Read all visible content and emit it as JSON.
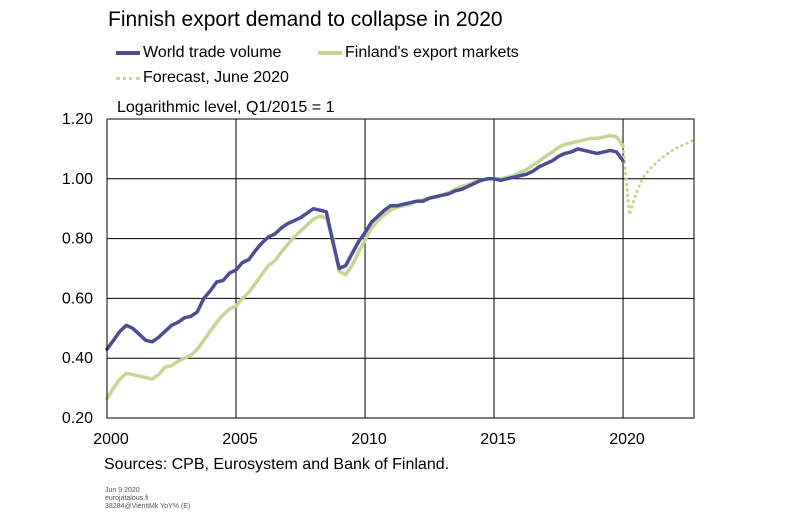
{
  "title": "Finnish export demand to collapse in 2020",
  "subtitle": "Logarithmic level, Q1/2015 = 1",
  "sources": "Sources: CPB, Eurosystem and Bank of Finland.",
  "footnote": [
    "Jun 9 2020",
    "eurojatalous.fi",
    "38284@VientiMk YoY% (E)"
  ],
  "colors": {
    "world": "#4b4d97",
    "finland": "#c5d592",
    "grid": "#000000"
  },
  "chart_data": {
    "type": "line",
    "title": "Finnish export demand to collapse in 2020",
    "ylabel": "Logarithmic level, Q1/2015 = 1",
    "xlim": [
      2000,
      2022.75
    ],
    "ylim": [
      0.2,
      1.2
    ],
    "y_scale": "linear",
    "grid": true,
    "legend_position": "top-left",
    "xticks": [
      2000,
      2005,
      2010,
      2015,
      2020
    ],
    "xtick_labels": [
      "2000",
      "2005",
      "2010",
      "2015",
      "2020"
    ],
    "yticks": [
      0.2,
      0.4,
      0.6,
      0.8,
      1.0,
      1.2
    ],
    "ytick_labels": [
      "0.20",
      "0.40",
      "0.60",
      "0.80",
      "1.00",
      "1.20"
    ],
    "series": [
      {
        "name": "World trade volume",
        "style": "solid",
        "color": "#4b4d97",
        "x": [
          2000.0,
          2000.25,
          2000.5,
          2000.75,
          2001.0,
          2001.25,
          2001.5,
          2001.75,
          2002.0,
          2002.25,
          2002.5,
          2002.75,
          2003.0,
          2003.25,
          2003.5,
          2003.75,
          2004.0,
          2004.25,
          2004.5,
          2004.75,
          2005.0,
          2005.25,
          2005.5,
          2005.75,
          2006.0,
          2006.25,
          2006.5,
          2006.75,
          2007.0,
          2007.25,
          2007.5,
          2007.75,
          2008.0,
          2008.25,
          2008.5,
          2008.75,
          2009.0,
          2009.25,
          2009.5,
          2009.75,
          2010.0,
          2010.25,
          2010.5,
          2010.75,
          2011.0,
          2011.25,
          2011.5,
          2011.75,
          2012.0,
          2012.25,
          2012.5,
          2012.75,
          2013.0,
          2013.25,
          2013.5,
          2013.75,
          2014.0,
          2014.25,
          2014.5,
          2014.75,
          2015.0,
          2015.25,
          2015.5,
          2015.75,
          2016.0,
          2016.25,
          2016.5,
          2016.75,
          2017.0,
          2017.25,
          2017.5,
          2017.75,
          2018.0,
          2018.25,
          2018.5,
          2018.75,
          2019.0,
          2019.25,
          2019.5,
          2019.75,
          2020.0
        ],
        "y": [
          0.43,
          0.46,
          0.49,
          0.51,
          0.5,
          0.48,
          0.46,
          0.455,
          0.47,
          0.49,
          0.51,
          0.52,
          0.535,
          0.54,
          0.555,
          0.6,
          0.625,
          0.655,
          0.66,
          0.685,
          0.695,
          0.72,
          0.73,
          0.76,
          0.785,
          0.805,
          0.815,
          0.835,
          0.85,
          0.86,
          0.87,
          0.885,
          0.9,
          0.895,
          0.89,
          0.79,
          0.7,
          0.71,
          0.75,
          0.79,
          0.82,
          0.855,
          0.875,
          0.895,
          0.91,
          0.91,
          0.915,
          0.92,
          0.925,
          0.925,
          0.935,
          0.94,
          0.945,
          0.95,
          0.96,
          0.965,
          0.975,
          0.985,
          0.995,
          1.0,
          1.0,
          0.995,
          1.0,
          1.005,
          1.01,
          1.015,
          1.025,
          1.04,
          1.05,
          1.06,
          1.075,
          1.085,
          1.09,
          1.1,
          1.095,
          1.09,
          1.085,
          1.09,
          1.095,
          1.09,
          1.06
        ]
      },
      {
        "name": "Finland's export markets",
        "style": "solid",
        "color": "#c5d592",
        "x": [
          2000.0,
          2000.25,
          2000.5,
          2000.75,
          2001.0,
          2001.25,
          2001.5,
          2001.75,
          2002.0,
          2002.25,
          2002.5,
          2002.75,
          2003.0,
          2003.25,
          2003.5,
          2003.75,
          2004.0,
          2004.25,
          2004.5,
          2004.75,
          2005.0,
          2005.25,
          2005.5,
          2005.75,
          2006.0,
          2006.25,
          2006.5,
          2006.75,
          2007.0,
          2007.25,
          2007.5,
          2007.75,
          2008.0,
          2008.25,
          2008.5,
          2008.75,
          2009.0,
          2009.25,
          2009.5,
          2009.75,
          2010.0,
          2010.25,
          2010.5,
          2010.75,
          2011.0,
          2011.25,
          2011.5,
          2011.75,
          2012.0,
          2012.25,
          2012.5,
          2012.75,
          2013.0,
          2013.25,
          2013.5,
          2013.75,
          2014.0,
          2014.25,
          2014.5,
          2014.75,
          2015.0,
          2015.25,
          2015.5,
          2015.75,
          2016.0,
          2016.25,
          2016.5,
          2016.75,
          2017.0,
          2017.25,
          2017.5,
          2017.75,
          2018.0,
          2018.25,
          2018.5,
          2018.75,
          2019.0,
          2019.25,
          2019.5,
          2019.75,
          2020.0
        ],
        "y": [
          0.265,
          0.3,
          0.33,
          0.35,
          0.345,
          0.34,
          0.335,
          0.33,
          0.345,
          0.37,
          0.375,
          0.39,
          0.4,
          0.41,
          0.43,
          0.46,
          0.49,
          0.52,
          0.545,
          0.565,
          0.575,
          0.6,
          0.62,
          0.65,
          0.68,
          0.71,
          0.725,
          0.755,
          0.78,
          0.805,
          0.825,
          0.845,
          0.865,
          0.875,
          0.87,
          0.8,
          0.69,
          0.68,
          0.71,
          0.755,
          0.795,
          0.835,
          0.86,
          0.88,
          0.895,
          0.905,
          0.91,
          0.915,
          0.925,
          0.93,
          0.935,
          0.94,
          0.945,
          0.955,
          0.965,
          0.975,
          0.98,
          0.99,
          0.995,
          1.0,
          1.0,
          1.0,
          1.005,
          1.01,
          1.02,
          1.03,
          1.045,
          1.06,
          1.075,
          1.09,
          1.105,
          1.115,
          1.12,
          1.125,
          1.13,
          1.135,
          1.135,
          1.14,
          1.145,
          1.14,
          1.11
        ]
      },
      {
        "name": "Forecast, June 2020",
        "style": "dotted",
        "color": "#c5d592",
        "x": [
          2020.0,
          2020.25,
          2020.5,
          2020.75,
          2021.0,
          2021.25,
          2021.5,
          2021.75,
          2022.0,
          2022.25,
          2022.5,
          2022.75
        ],
        "y": [
          1.11,
          0.88,
          0.95,
          1.0,
          1.03,
          1.05,
          1.07,
          1.085,
          1.1,
          1.11,
          1.12,
          1.13
        ]
      }
    ]
  }
}
